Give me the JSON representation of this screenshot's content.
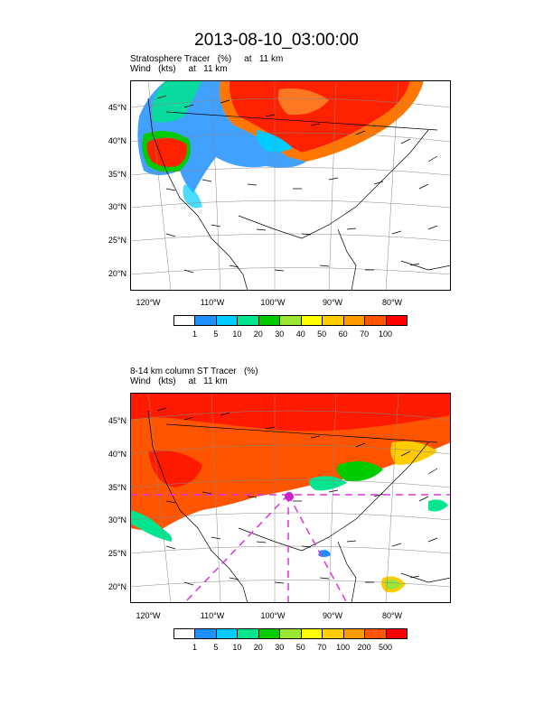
{
  "title": "2013-08-10_03:00:00",
  "panels": [
    {
      "subtitle1": "Stratosphere Tracer   (%)     at   11 km",
      "subtitle2": "Wind   (kts)     at   11 km",
      "lat_labels": [
        "45°N",
        "40°N",
        "35°N",
        "30°N",
        "25°N",
        "20°N"
      ],
      "lon_labels": [
        "120°W",
        "110°W",
        "100°W",
        "90°W",
        "80°W"
      ],
      "colorbar_labels": [
        "1",
        "5",
        "10",
        "20",
        "30",
        "40",
        "50",
        "60",
        "70",
        "100"
      ]
    },
    {
      "subtitle1": "8-14 km column ST Tracer   (%)",
      "subtitle2": "Wind   (kts)     at   11 km",
      "lat_labels": [
        "45°N",
        "40°N",
        "35°N",
        "30°N",
        "25°N",
        "20°N"
      ],
      "lon_labels": [
        "120°W",
        "110°W",
        "100°W",
        "90°W",
        "80°W"
      ],
      "colorbar_labels": [
        "1",
        "5",
        "10",
        "20",
        "30",
        "50",
        "70",
        "100",
        "200",
        "500"
      ]
    }
  ],
  "colorbar_colors": [
    "#ffffff",
    "#1e90ff",
    "#00ccff",
    "#00e58e",
    "#00cc00",
    "#99e633",
    "#ffff00",
    "#ffcc00",
    "#ff9900",
    "#ff5500",
    "#ff0000"
  ]
}
